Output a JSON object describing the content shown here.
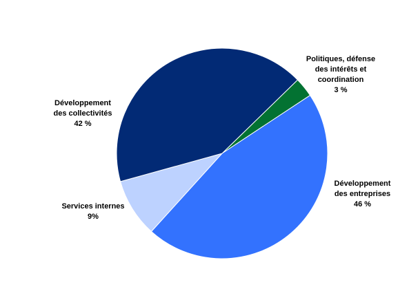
{
  "chart_data": {
    "type": "pie",
    "start_angle_deg": 44.3,
    "direction": "clockwise",
    "slices": [
      {
        "label_lines": [
          "Politiques, défense",
          "des intérêts et",
          "coordination"
        ],
        "pct_text": "3 %",
        "value": 3,
        "color": "#037232"
      },
      {
        "label_lines": [
          "Développement",
          "des entreprises"
        ],
        "pct_text": "46 %",
        "value": 46,
        "color": "#3372fe"
      },
      {
        "label_lines": [
          "Services internes"
        ],
        "pct_text": "9%",
        "value": 9,
        "color": "#bdd2ff"
      },
      {
        "label_lines": [
          "Développement",
          "des collectivités"
        ],
        "pct_text": "42 %",
        "value": 42,
        "color": "#022a75"
      }
    ]
  }
}
